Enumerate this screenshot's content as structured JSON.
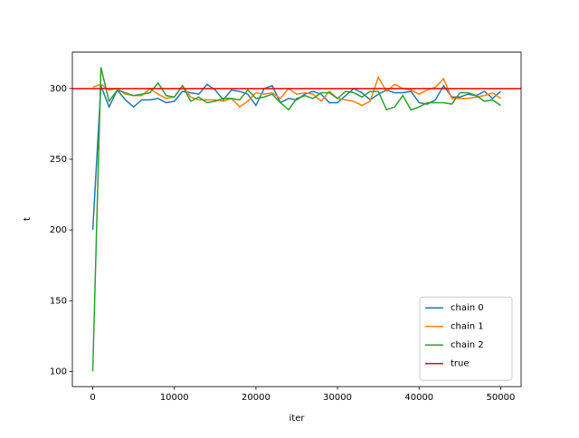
{
  "chart_data": {
    "type": "line",
    "xlabel": "iter",
    "ylabel": "t",
    "x": [
      0,
      1000,
      2000,
      3000,
      4000,
      5000,
      6000,
      7000,
      8000,
      9000,
      10000,
      11000,
      12000,
      13000,
      14000,
      15000,
      16000,
      17000,
      18000,
      19000,
      20000,
      21000,
      22000,
      23000,
      24000,
      25000,
      26000,
      27000,
      28000,
      29000,
      30000,
      31000,
      32000,
      33000,
      34000,
      35000,
      36000,
      37000,
      38000,
      39000,
      40000,
      41000,
      42000,
      43000,
      44000,
      45000,
      46000,
      47000,
      48000,
      49000,
      50000
    ],
    "series": [
      {
        "name": "chain 0",
        "color": "#1f77b4",
        "values": [
          200,
          302,
          287,
          299,
          292,
          287,
          292,
          292,
          293,
          290,
          291,
          298,
          297,
          296,
          303,
          299,
          292,
          299,
          298,
          296,
          288,
          300,
          302,
          290,
          293,
          292,
          296,
          298,
          296,
          290,
          290,
          295,
          300,
          297,
          292,
          296,
          299,
          297,
          297,
          298,
          290,
          289,
          292,
          302,
          294,
          294,
          296,
          295,
          298,
          293,
          298
        ]
      },
      {
        "name": "chain 1",
        "color": "#ff7f0e",
        "values": [
          301,
          303,
          299,
          300,
          296,
          295,
          295,
          300,
          296,
          293,
          294,
          302,
          294,
          292,
          292,
          292,
          291,
          293,
          287,
          291,
          297,
          296,
          297,
          293,
          300,
          296,
          297,
          296,
          291,
          298,
          293,
          292,
          291,
          288,
          291,
          308,
          298,
          303,
          300,
          299,
          296,
          299,
          301,
          307,
          293,
          293,
          293,
          294,
          295,
          297,
          293
        ]
      },
      {
        "name": "chain 2",
        "color": "#2ca02c",
        "values": [
          100,
          315,
          291,
          299,
          297,
          295,
          296,
          297,
          304,
          295,
          294,
          302,
          291,
          294,
          290,
          291,
          293,
          293,
          292,
          299,
          293,
          294,
          296,
          290,
          285,
          293,
          295,
          293,
          297,
          297,
          293,
          298,
          297,
          294,
          298,
          298,
          285,
          287,
          295,
          285,
          287,
          290,
          290,
          290,
          289,
          297,
          297,
          295,
          291,
          292,
          288
        ]
      }
    ],
    "hlines": [
      {
        "name": "true",
        "color": "#ff0000",
        "value": 300
      }
    ],
    "xlim": [
      -2500,
      52500
    ],
    "ylim": [
      89.25,
      325.75
    ],
    "xticks": [
      0,
      10000,
      20000,
      30000,
      40000,
      50000
    ],
    "yticks": [
      100,
      150,
      200,
      250,
      300
    ],
    "legend": "lower right"
  }
}
